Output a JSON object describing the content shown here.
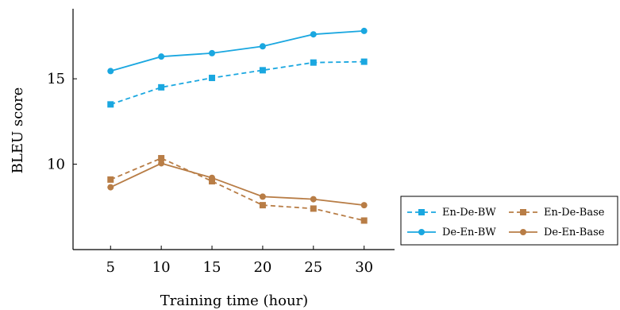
{
  "chart_data": {
    "type": "line",
    "title": "",
    "xlabel": "Training time (hour)",
    "ylabel": "BLEU score",
    "x": [
      5,
      10,
      15,
      20,
      25,
      30
    ],
    "xticks": [
      "5",
      "10",
      "15",
      "20",
      "25",
      "30"
    ],
    "yticks": [
      "10",
      "15"
    ],
    "ytick_values": [
      10,
      15
    ],
    "xlim": [
      1.3,
      33.0
    ],
    "ylim": [
      5.0,
      19.1
    ],
    "grid": false,
    "legend_position": "bottom-right",
    "series": [
      {
        "name": "En-De-BW",
        "values": [
          13.5,
          14.5,
          15.05,
          15.5,
          15.95,
          16.0
        ],
        "color": "#1aa7e0",
        "dash": "dashed",
        "marker": "square"
      },
      {
        "name": "En-De-Base",
        "values": [
          9.1,
          10.35,
          9.0,
          7.6,
          7.4,
          6.7
        ],
        "color": "#b87d46",
        "dash": "dashed",
        "marker": "square"
      },
      {
        "name": "De-En-BW",
        "values": [
          15.45,
          16.3,
          16.5,
          16.9,
          17.6,
          17.8
        ],
        "color": "#1aa7e0",
        "dash": "solid",
        "marker": "circle"
      },
      {
        "name": "De-En-Base",
        "values": [
          8.65,
          10.05,
          9.2,
          8.1,
          7.95,
          7.6
        ],
        "color": "#b87d46",
        "dash": "solid",
        "marker": "circle"
      }
    ]
  }
}
